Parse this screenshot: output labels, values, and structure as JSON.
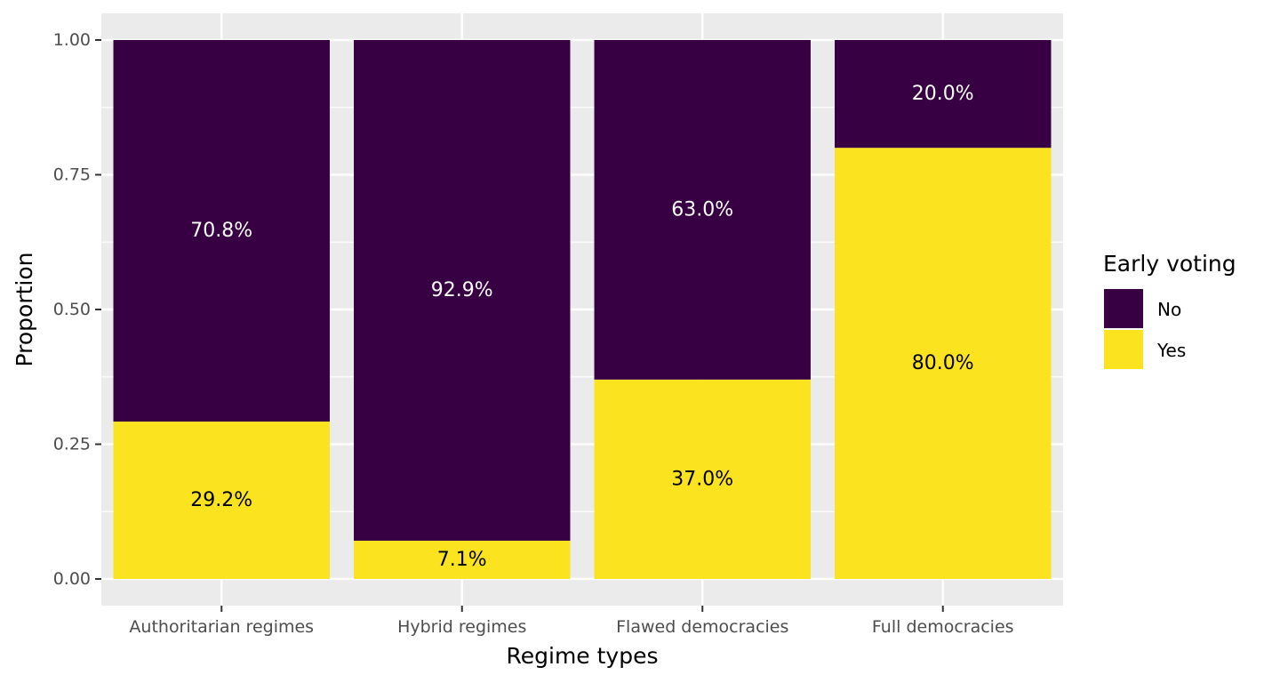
{
  "chart_data": {
    "type": "bar",
    "stacked": true,
    "categories": [
      "Authoritarian regimes",
      "Hybrid regimes",
      "Flawed democracies",
      "Full democracies"
    ],
    "series": [
      {
        "name": "No",
        "color": "#360043",
        "label_color": "#ffffff",
        "values": [
          0.708,
          0.929,
          0.63,
          0.2
        ],
        "labels": [
          "70.8%",
          "92.9%",
          "63.0%",
          "20.0%"
        ]
      },
      {
        "name": "Yes",
        "color": "#FBE320",
        "label_color": "#000000",
        "values": [
          0.292,
          0.071,
          0.37,
          0.8
        ],
        "labels": [
          "29.2%",
          "7.1%",
          "37.0%",
          "80.0%"
        ]
      }
    ],
    "stack_order_bottom_to_top": [
      "Yes",
      "No"
    ],
    "xlabel": "Regime types",
    "ylabel": "Proportion",
    "ylim": [
      0,
      1
    ],
    "yticks": [
      0,
      0.25,
      0.5,
      0.75,
      1.0
    ],
    "ytick_labels": [
      "0.00",
      "0.25",
      "0.50",
      "0.75",
      "1.00"
    ],
    "legend": {
      "title": "Early voting",
      "placement": "right"
    },
    "grid": true,
    "panel_color": "#EBEBEB",
    "grid_color": "#ffffff"
  }
}
